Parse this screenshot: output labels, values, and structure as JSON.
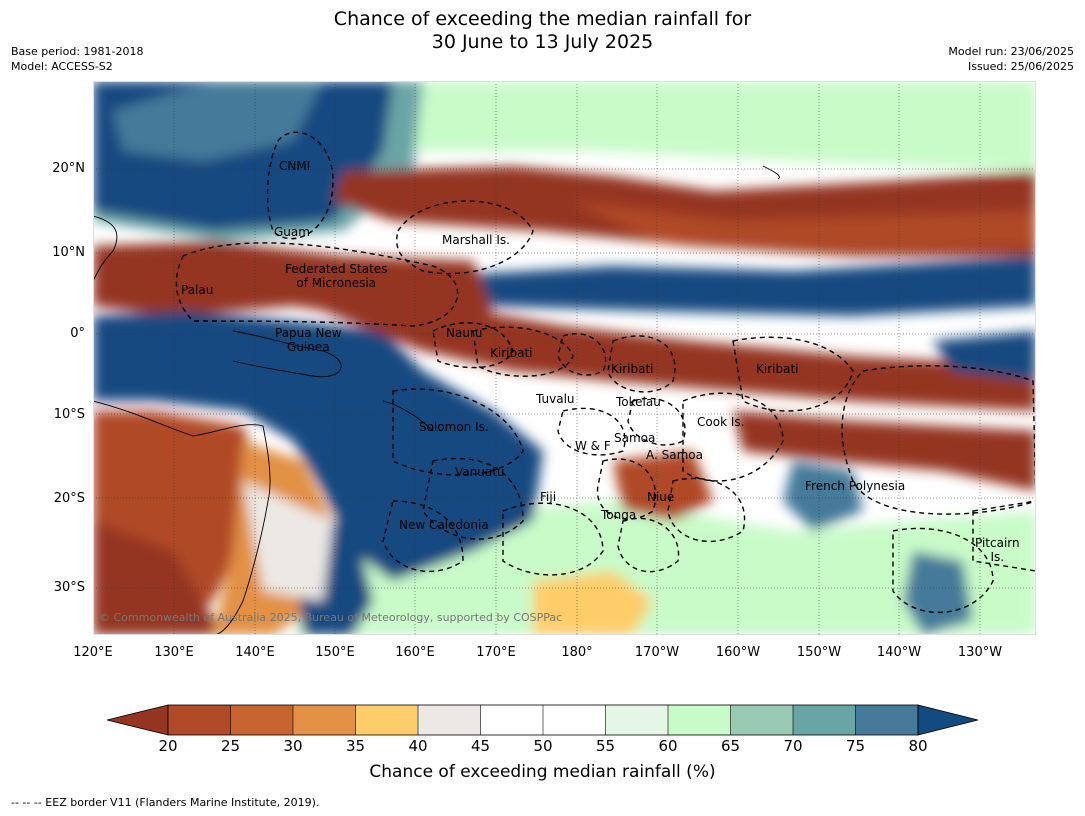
{
  "title": {
    "line1": "Chance of exceeding the median rainfall for",
    "line2": "30 June to 13 July 2025"
  },
  "meta": {
    "base_period": "Base period: 1981-2018",
    "model": "Model: ACCESS-S2",
    "model_run": "Model run: 23/06/2025",
    "issued": "Issued: 25/06/2025"
  },
  "map": {
    "latitude_labels": [
      "20°N",
      "10°N",
      "0°",
      "10°S",
      "20°S",
      "30°S"
    ],
    "longitude_labels": [
      "120°E",
      "130°E",
      "140°E",
      "150°E",
      "160°E",
      "170°E",
      "180°",
      "170°W",
      "160°W",
      "150°W",
      "140°W",
      "130°W"
    ],
    "regions": {
      "cnmi": "CNMI",
      "guam": "Guam",
      "marshall": "Marshall Is.",
      "fsm_1": "Federated States",
      "fsm_2": "of Micronesia",
      "palau": "Palau",
      "png_1": "Papua New",
      "png_2": "Guinea",
      "nauru": "Nauru",
      "kiribati_w": "Kiribati",
      "kiribati_c": "Kiribati",
      "kiribati_e": "Kiribati",
      "tuvalu": "Tuvalu",
      "tokelau": "Tokelau",
      "cook": "Cook Is.",
      "solomon": "Solomon Is.",
      "wf": "W & F",
      "samoa": "Samoa",
      "asamoa": "A. Samoa",
      "vanuatu": "Vanuatu",
      "fiji": "Fiji",
      "niue": "Niue",
      "tonga": "Tonga",
      "french_polynesia": "French Polynesia",
      "new_caledonia": "New Caledonia",
      "pitcairn_1": "Pitcairn",
      "pitcairn_2": "Is."
    },
    "copyright": "© Commonwealth of Australia 2025, Bureau of Meteorology, supported by COSPPac"
  },
  "colorbar": {
    "ticks": [
      "20",
      "25",
      "30",
      "35",
      "40",
      "45",
      "50",
      "55",
      "60",
      "65",
      "70",
      "75",
      "80"
    ],
    "colors": {
      "below_20": "#943522",
      "c20_25": "#b04a27",
      "c25_30": "#c86430",
      "c30_35": "#e29145",
      "c35_40": "#fdcd6a",
      "c40_45": "#ece9e4",
      "c45_50": "#ffffff",
      "c50_55": "#ffffff",
      "c55_60": "#e6f6e6",
      "c60_65": "#c9fbc9",
      "c65_70": "#9ac9b4",
      "c70_75": "#6aa5a6",
      "c75_80": "#457a9a",
      "above_80": "#134a80"
    },
    "label": "Chance of exceeding median rainfall (%)"
  },
  "footnote": "--  --  -- EEZ border V11 (Flanders Marine Institute, 2019)."
}
